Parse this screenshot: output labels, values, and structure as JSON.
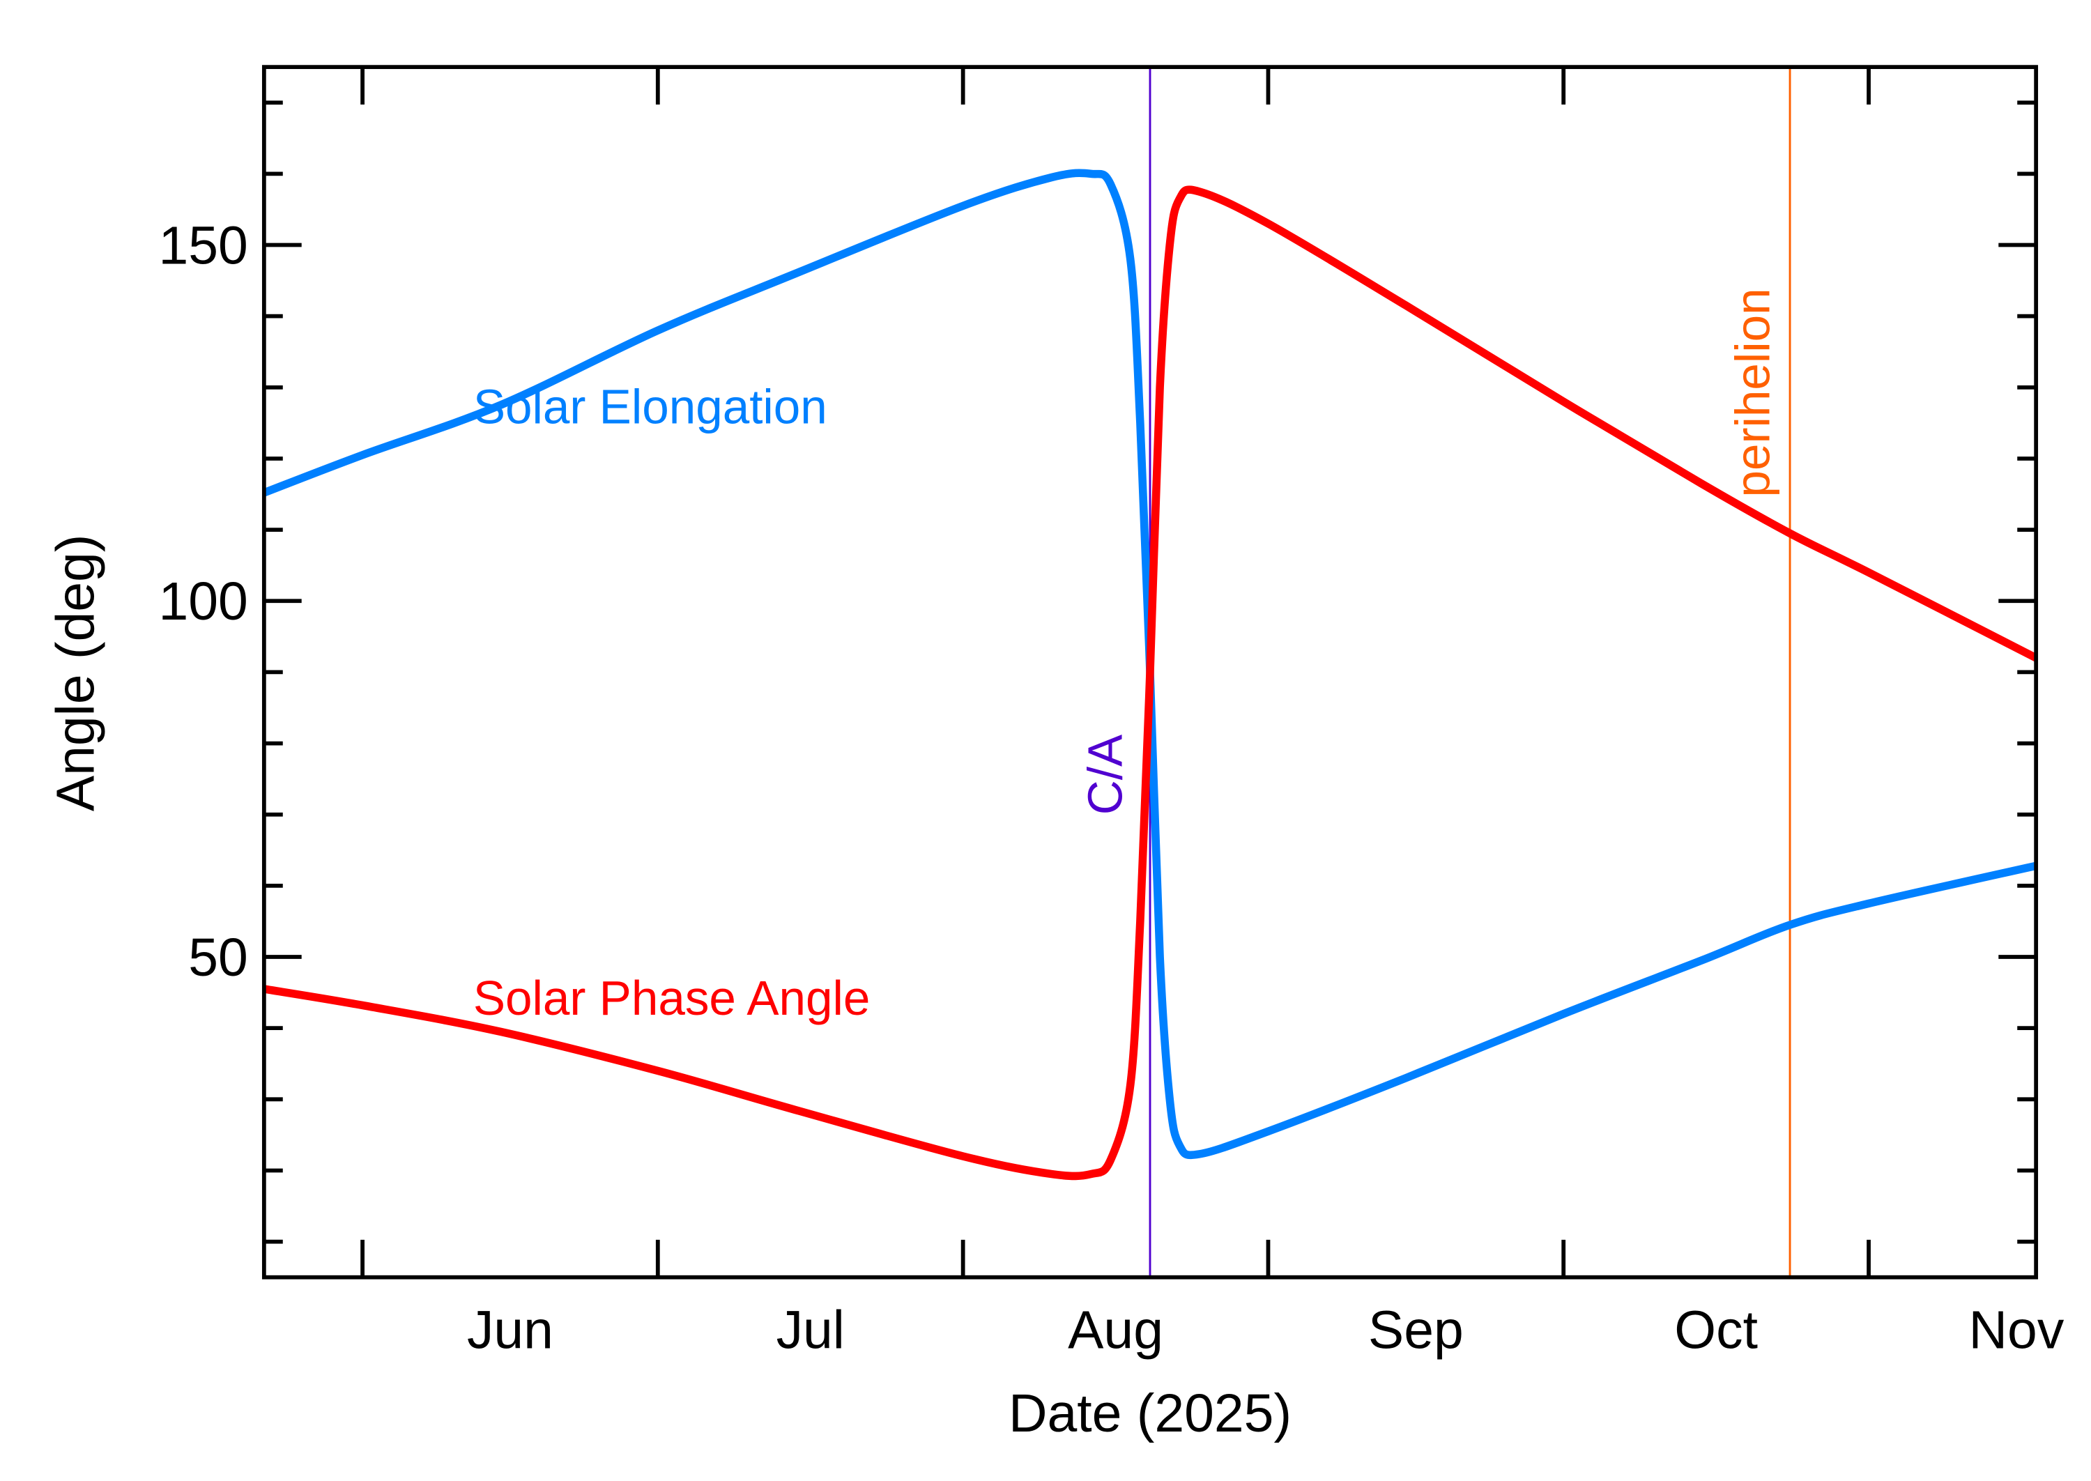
{
  "chart_data": {
    "type": "line",
    "title": "",
    "xlabel": "Date (2025)",
    "ylabel": "Angle (deg)",
    "xlim": [
      "2025-05-22",
      "2025-11-18"
    ],
    "ylim": [
      5,
      175
    ],
    "x_tick_labels": [
      "Jun",
      "Jul",
      "Aug",
      "Sep",
      "Oct",
      "Nov"
    ],
    "x_tick_dates": [
      "2025-06-01",
      "2025-07-01",
      "2025-08-01",
      "2025-09-01",
      "2025-10-01",
      "2025-11-01"
    ],
    "y_ticks": [
      50,
      100,
      150
    ],
    "y_tick_labels": [
      "50",
      "100",
      "150"
    ],
    "grid": false,
    "series": [
      {
        "name": "Solar Elongation",
        "color": "#0080ff",
        "x": [
          "2025-05-22",
          "2025-06-01",
          "2025-06-15",
          "2025-07-01",
          "2025-07-15",
          "2025-08-01",
          "2025-08-10",
          "2025-08-14",
          "2025-08-16",
          "2025-08-18",
          "2025-08-19",
          "2025-08-20",
          "2025-08-21",
          "2025-08-22",
          "2025-08-23",
          "2025-08-25",
          "2025-09-01",
          "2025-09-15",
          "2025-10-01",
          "2025-10-15",
          "2025-10-24",
          "2025-11-01",
          "2025-11-18"
        ],
        "y": [
          115.2,
          120.5,
          127.5,
          138,
          146,
          155.5,
          159.5,
          160,
          158.5,
          148,
          125,
          90,
          50,
          30,
          23.5,
          22.3,
          25.5,
          33,
          42,
          49.5,
          54.5,
          57.5,
          62.8
        ]
      },
      {
        "name": "Solar Phase Angle",
        "color": "#ff0000",
        "x": [
          "2025-05-22",
          "2025-06-01",
          "2025-06-15",
          "2025-07-01",
          "2025-07-15",
          "2025-08-01",
          "2025-08-10",
          "2025-08-14",
          "2025-08-16",
          "2025-08-18",
          "2025-08-19",
          "2025-08-20",
          "2025-08-21",
          "2025-08-22",
          "2025-08-23",
          "2025-08-25",
          "2025-09-01",
          "2025-09-15",
          "2025-10-01",
          "2025-10-15",
          "2025-10-24",
          "2025-11-01",
          "2025-11-18"
        ],
        "y": [
          45.5,
          43.2,
          39.5,
          34,
          28.5,
          22,
          19.5,
          19.5,
          21.5,
          32,
          55,
          90,
          130,
          150,
          156.5,
          157.5,
          153,
          141.5,
          128,
          116.5,
          109.5,
          104,
          92
        ]
      }
    ],
    "annotations": [
      {
        "label": "C/A",
        "date": "2025-08-20",
        "color": "#5000d0"
      },
      {
        "label": "perihelion",
        "date": "2025-10-24",
        "color": "#ff6000"
      }
    ]
  }
}
